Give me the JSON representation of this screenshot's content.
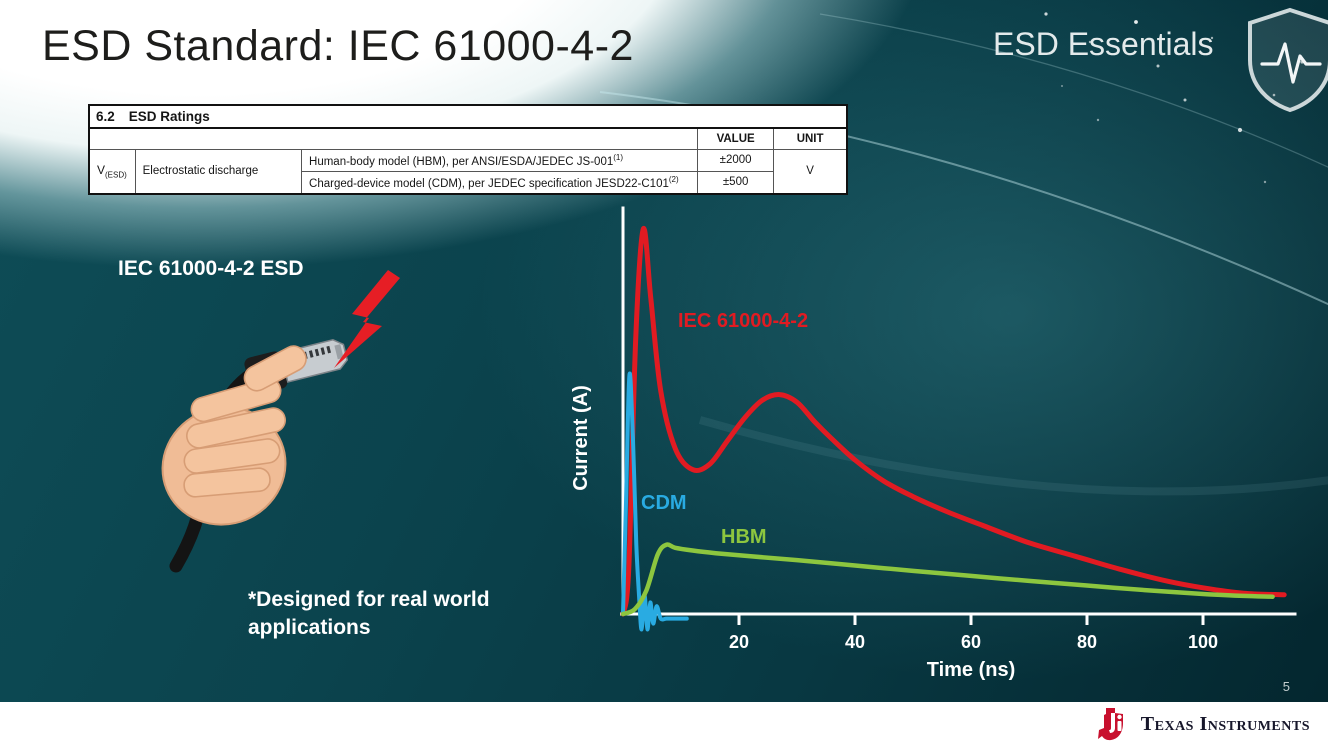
{
  "slide": {
    "title": "ESD Standard: IEC 61000-4-2",
    "brand": "ESD Essentials",
    "page_number": "5",
    "footer_logo": "Texas Instruments"
  },
  "colors": {
    "ti_red": "#c8102e",
    "bolt_red": "#e61e25",
    "iec_red": "#e11b22",
    "cdm_blue": "#29abe2",
    "hbm_green": "#8dc63f"
  },
  "icons": {
    "brand_shield": "shield-with-pulse",
    "bolt": "lightning-bolt",
    "ti_logo": "texas-instruments-bug"
  },
  "table": {
    "section": "6.2",
    "section_title": "ESD Ratings",
    "col_headers": [
      "VALUE",
      "UNIT"
    ],
    "row_param": "V",
    "row_param_sub": "(ESD)",
    "row_label": "Electrostatic discharge",
    "rows": [
      {
        "desc": "Human-body model (HBM), per ANSI/ESDA/JEDEC JS-001",
        "desc_sup": "(1)",
        "value": "±2000"
      },
      {
        "desc": "Charged-device model (CDM), per JEDEC specification JESD22-C101",
        "desc_sup": "(2)",
        "value": "±500"
      }
    ],
    "unit": "V"
  },
  "illustration": {
    "label": "IEC 61000-4-2 ESD",
    "note_line1": "*Designed for real world",
    "note_line2": "applications"
  },
  "chart_data": {
    "type": "line",
    "title": "",
    "xlabel": "Time (ns)",
    "ylabel": "Current (A)",
    "xlim": [
      0,
      115
    ],
    "ylim": [
      0,
      1.05
    ],
    "x_ticks": [
      20,
      40,
      60,
      80,
      100
    ],
    "grid": false,
    "legend_position": "inline-labels",
    "series": [
      {
        "name": "IEC 61000-4-2",
        "color": "#e11b22",
        "points": [
          [
            0,
            0
          ],
          [
            1,
            0.12
          ],
          [
            2.2,
            0.72
          ],
          [
            3.5,
            1.0
          ],
          [
            4.8,
            0.82
          ],
          [
            6.5,
            0.58
          ],
          [
            9,
            0.43
          ],
          [
            12,
            0.375
          ],
          [
            15,
            0.39
          ],
          [
            18,
            0.45
          ],
          [
            21,
            0.51
          ],
          [
            24,
            0.555
          ],
          [
            27,
            0.57
          ],
          [
            30,
            0.55
          ],
          [
            33,
            0.5
          ],
          [
            36,
            0.455
          ],
          [
            40,
            0.4
          ],
          [
            45,
            0.345
          ],
          [
            50,
            0.305
          ],
          [
            56,
            0.265
          ],
          [
            62,
            0.23
          ],
          [
            70,
            0.185
          ],
          [
            78,
            0.15
          ],
          [
            86,
            0.115
          ],
          [
            94,
            0.085
          ],
          [
            100,
            0.068
          ],
          [
            107,
            0.054
          ],
          [
            114,
            0.05
          ]
        ]
      },
      {
        "name": "CDM",
        "color": "#29abe2",
        "points": [
          [
            0,
            0
          ],
          [
            0.5,
            0.28
          ],
          [
            1.1,
            0.62
          ],
          [
            1.7,
            0.46
          ],
          [
            2.3,
            0.18
          ],
          [
            2.8,
            0.04
          ],
          [
            3.2,
            -0.04
          ],
          [
            3.7,
            0.05
          ],
          [
            4.2,
            -0.04
          ],
          [
            4.7,
            0.03
          ],
          [
            5.2,
            -0.025
          ],
          [
            5.8,
            0.02
          ],
          [
            6.5,
            -0.012
          ],
          [
            7.5,
            -0.012
          ],
          [
            9,
            -0.012
          ],
          [
            11,
            -0.012
          ]
        ]
      },
      {
        "name": "HBM",
        "color": "#8dc63f",
        "points": [
          [
            0,
            0
          ],
          [
            2,
            0.012
          ],
          [
            4,
            0.06
          ],
          [
            6,
            0.155
          ],
          [
            7.5,
            0.18
          ],
          [
            9,
            0.172
          ],
          [
            12,
            0.165
          ],
          [
            16,
            0.158
          ],
          [
            22,
            0.15
          ],
          [
            30,
            0.14
          ],
          [
            40,
            0.126
          ],
          [
            50,
            0.112
          ],
          [
            60,
            0.099
          ],
          [
            70,
            0.086
          ],
          [
            80,
            0.074
          ],
          [
            90,
            0.062
          ],
          [
            100,
            0.052
          ],
          [
            107,
            0.047
          ],
          [
            112,
            0.045
          ]
        ]
      }
    ],
    "labels": [
      {
        "text": "IEC 61000-4-2",
        "color": "#e11b22"
      },
      {
        "text": "CDM",
        "color": "#29abe2"
      },
      {
        "text": "HBM",
        "color": "#8dc63f"
      }
    ]
  }
}
